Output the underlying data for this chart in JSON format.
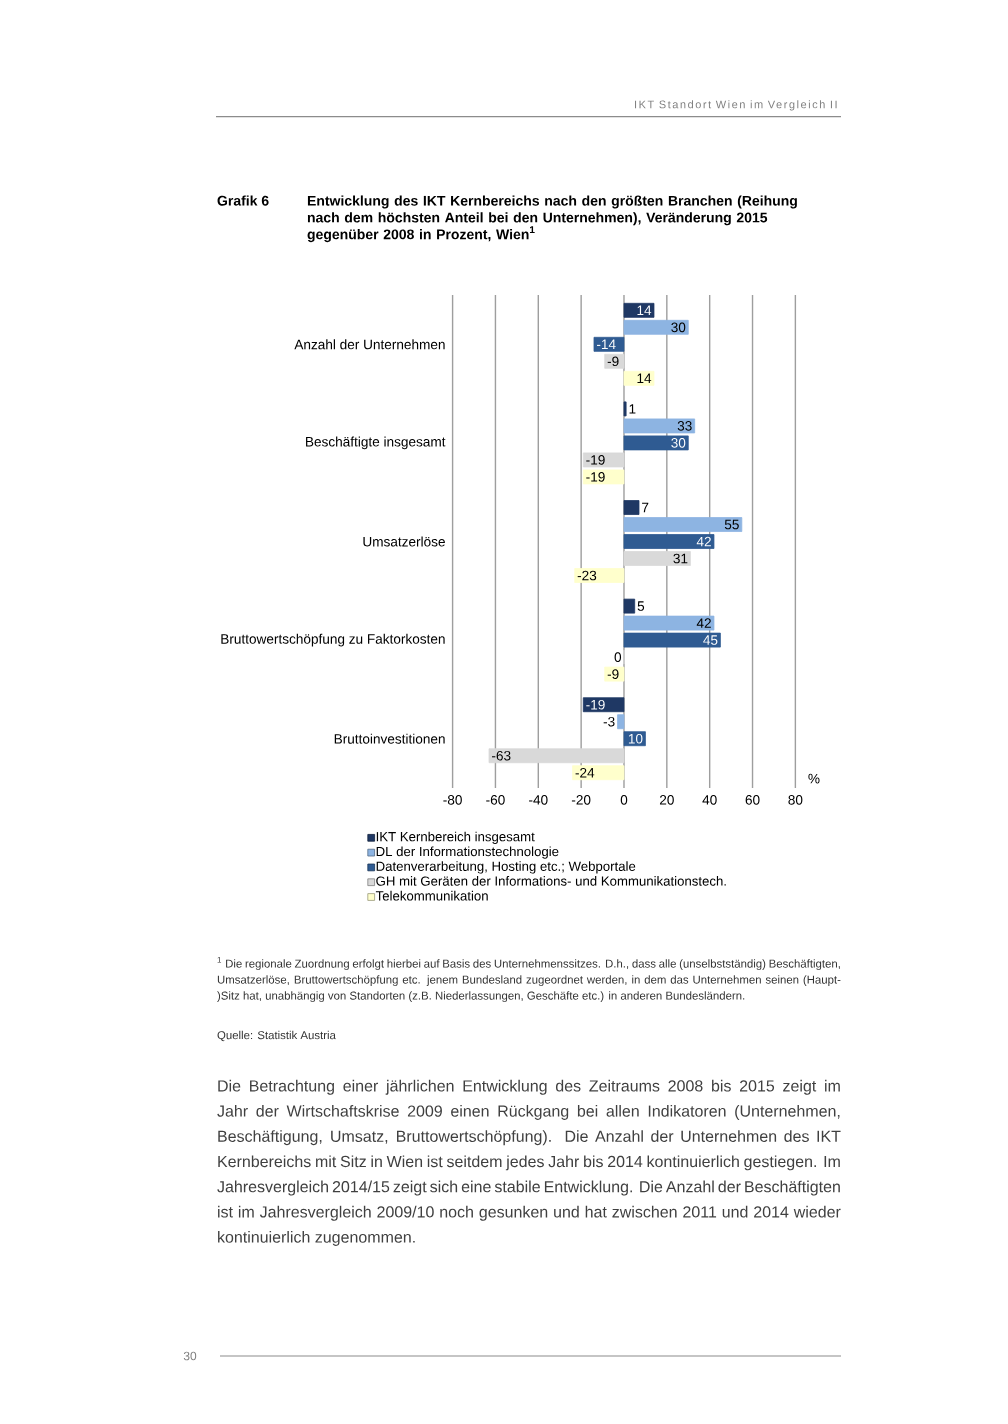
{
  "chart_data": {
    "type": "bar",
    "orientation": "horizontal",
    "title": "Entwicklung des IKT Kernbereichs nach den größten Branchen (Reihung nach dem höchsten Anteil bei den Unternehmen), Veränderung 2015 gegenüber 2008 in Prozent, Wien$^{1}$",
    "xlabel": "%",
    "categories": [
      "Anzahl der Unternehmen",
      "Beschäftigte insgesamt",
      "Umsatzerlöse",
      "Bruttowertschöpfung zu Faktorkosten",
      "Bruttoinvestitionen"
    ],
    "series": [
      {
        "name": "IKT Kernbereich insgesamt",
        "color": "#1f3864",
        "values": [
          14,
          1,
          7,
          5,
          -19
        ]
      },
      {
        "name": "DL der Informationstechnologie",
        "color": "#8db4e2",
        "values": [
          30,
          33,
          55,
          42,
          -3
        ]
      },
      {
        "name": "Datenverarbeitung, Hosting etc.; Webportale",
        "color": "#2f5b92",
        "values": [
          -14,
          30,
          42,
          45,
          10
        ]
      },
      {
        "name": "GH mit Geräten der Informations- und Kommunikationstech.",
        "color": "#d9d9d9",
        "values": [
          -9,
          -19,
          31,
          0,
          -63
        ]
      },
      {
        "name": "Telekommunikation",
        "color": "#ffffcc",
        "values": [
          14,
          -19,
          -23,
          -9,
          -24
        ]
      }
    ],
    "xlim": [
      -80,
      80
    ],
    "xticks": [
      -80,
      -60,
      -40,
      -20,
      0,
      20,
      40,
      60,
      80
    ],
    "grid": "x",
    "legend": "bottom",
    "data_labels": true,
    "annotations": [
      "Grafik 6",
      "$^{1}$ Die regionale Zuordnung erfolgt hierbei auf Basis des Unternehmenssitzes. D.h., dass alle (unselbstständig) Beschäftigten, Umsatzerlöse, Bruttowertschöpfung etc. jenem Bundesland zugeordnet werden, in dem das Unternehmen seinen (Haupt-)Sitz hat, unabhängig von Standorten (z.B. Niederlassungen, Geschäfte etc.) in anderen Bundesländern.",
      "Quelle: Statistik Austria",
      "Die Betrachtung einer jährlichen Entwicklung des Zeitraums 2008 bis 2015 zeigt im Jahr der Wirtschaftskrise 2009 einen Rückgang bei allen Indikatoren (Unternehmen, Beschäftigung, Umsatz, Bruttowertschöpfung). Die Anzahl der Unternehmen des IKT Kernbereichs mit Sitz in Wien ist seitdem jedes Jahr bis 2014 kontinuierlich gestiegen. Im Jahresvergleich 2014/15 zeigt sich eine stabile Entwicklung. Die Anzahl der Beschäftigten ist im Jahresvergleich 2009/10 noch gesunken und hat zwischen 2011 und 2014 wieder kontinuierlich zugenommen.",
      "IKT Standort Wien im Vergleich II",
      "30"
    ]
  }
}
